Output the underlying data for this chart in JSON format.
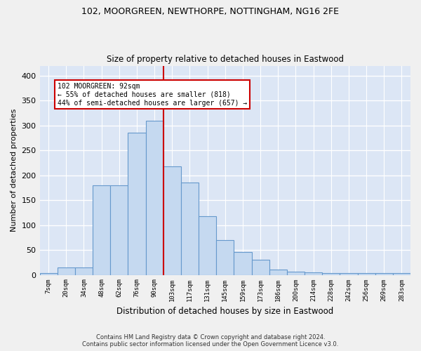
{
  "title1": "102, MOORGREEN, NEWTHORPE, NOTTINGHAM, NG16 2FE",
  "title2": "Size of property relative to detached houses in Eastwood",
  "xlabel": "Distribution of detached houses by size in Eastwood",
  "ylabel": "Number of detached properties",
  "bar_labels": [
    "7sqm",
    "20sqm",
    "34sqm",
    "48sqm",
    "62sqm",
    "76sqm",
    "90sqm",
    "103sqm",
    "117sqm",
    "131sqm",
    "145sqm",
    "159sqm",
    "173sqm",
    "186sqm",
    "200sqm",
    "214sqm",
    "228sqm",
    "242sqm",
    "256sqm",
    "269sqm",
    "283sqm"
  ],
  "bar_values": [
    3,
    15,
    15,
    180,
    180,
    285,
    310,
    218,
    185,
    118,
    70,
    46,
    30,
    10,
    6,
    5,
    4,
    4,
    4,
    4,
    4
  ],
  "bar_color": "#c5d9f0",
  "bar_edge_color": "#6699cc",
  "vline_x_index": 6,
  "vline_color": "#cc0000",
  "annotation_lines": [
    "102 MOORGREEN: 92sqm",
    "← 55% of detached houses are smaller (818)",
    "44% of semi-detached houses are larger (657) →"
  ],
  "annotation_box_color": "#ffffff",
  "annotation_box_edge": "#cc0000",
  "bg_color": "#dce6f5",
  "grid_color": "#ffffff",
  "ylim": [
    0,
    420
  ],
  "yticks": [
    0,
    50,
    100,
    150,
    200,
    250,
    300,
    350,
    400
  ],
  "footer1": "Contains HM Land Registry data © Crown copyright and database right 2024.",
  "footer2": "Contains public sector information licensed under the Open Government Licence v3.0."
}
